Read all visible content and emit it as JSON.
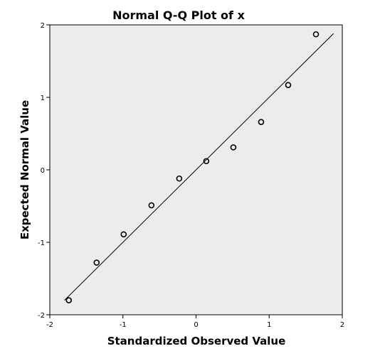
{
  "chart_data": {
    "type": "scatter",
    "title": "Normal Q-Q Plot of x",
    "xlabel": "Standardized Observed Value",
    "ylabel": "Expected Normal Value",
    "xlim": [
      -2,
      2
    ],
    "ylim": [
      -2,
      2
    ],
    "x_ticks": [
      "-2",
      "-1",
      "0",
      "1",
      "2"
    ],
    "y_ticks": [
      "-2",
      "-1",
      "0",
      "1",
      "2"
    ],
    "grid": false,
    "legend": "none",
    "plot_background": "#ececec",
    "marker_style": "hollow-circle",
    "points": [
      {
        "x": -1.74,
        "y": -1.8
      },
      {
        "x": -1.36,
        "y": -1.28
      },
      {
        "x": -0.99,
        "y": -0.89
      },
      {
        "x": -0.61,
        "y": -0.49
      },
      {
        "x": -0.23,
        "y": -0.12
      },
      {
        "x": 0.14,
        "y": 0.12
      },
      {
        "x": 0.51,
        "y": 0.31
      },
      {
        "x": 0.89,
        "y": 0.66
      },
      {
        "x": 1.26,
        "y": 1.17
      },
      {
        "x": 1.64,
        "y": 1.87
      }
    ],
    "reference_line": {
      "x": [
        -1.8,
        1.88
      ],
      "y": [
        -1.8,
        1.88
      ]
    }
  }
}
